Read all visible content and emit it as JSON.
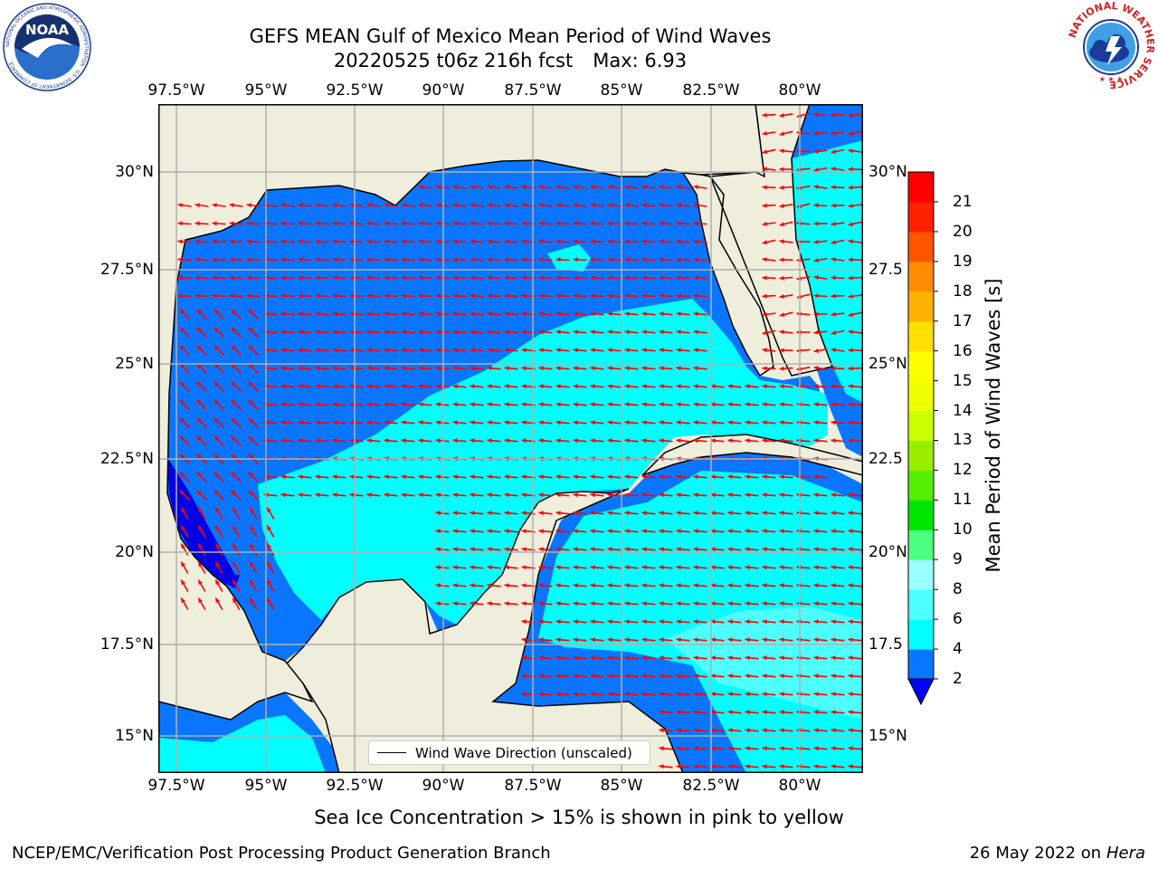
{
  "header": {
    "title_line1": "GEFS MEAN Gulf of Mexico Mean Period of Wind Waves",
    "title_run": "20220525 t06z 216h fcst",
    "title_max": "Max: 6.93"
  },
  "map": {
    "lon_labels": [
      "97.5°W",
      "95°W",
      "92.5°W",
      "90°W",
      "87.5°W",
      "85°W",
      "82.5°W",
      "80°W"
    ],
    "lat_labels_left": [
      "30°N",
      "27.5°N",
      "25°N",
      "22.5°N",
      "20°N",
      "17.5°N",
      "15°N"
    ],
    "lat_labels_right": [
      "30°N",
      "27.5",
      "25°N",
      "22.5",
      "20°N",
      "17.5",
      "15°N"
    ],
    "legend_label": "Wind Wave Direction (unscaled)",
    "land_color": "#efeddc",
    "max_value": 6.93,
    "colors": {
      "band_2_4": "#0a76ff",
      "band_4_6": "#00ffff",
      "band_6_8": "#4dffff",
      "below_2": "#0000e6",
      "arrows": "#ff0000"
    }
  },
  "colorbar": {
    "label": "Mean Period of Wind Waves [s]",
    "ticks": [
      "2",
      "4",
      "6",
      "8",
      "9",
      "10",
      "11",
      "12",
      "13",
      "14",
      "15",
      "16",
      "17",
      "18",
      "19",
      "20",
      "21"
    ],
    "band_colors": [
      "#0a76ff",
      "#00ffff",
      "#4dffff",
      "#99ffff",
      "#4dff80",
      "#00e600",
      "#55ee00",
      "#99ee00",
      "#ccff00",
      "#eeff00",
      "#ffff00",
      "#ffe000",
      "#ffb000",
      "#ff8c00",
      "#ff5500",
      "#ff2000",
      "#ff0000"
    ],
    "extend_color": "#0000ff"
  },
  "footer": {
    "sea_ice_note": "Sea Ice Concentration > 15% is shown in pink to yellow",
    "left": "NCEP/EMC/Verification Post Processing Product Generation Branch",
    "date": "26 May 2022 on",
    "machine": "Hera"
  },
  "logos": {
    "noaa_text": "NOAA",
    "noaa_ring_text": "NATIONAL OCEANIC AND ATMOSPHERIC ADMINISTRATION · U.S. DEPARTMENT OF COMMERCE",
    "nws_ring_text": "NATIONAL WEATHER SERVICE"
  }
}
